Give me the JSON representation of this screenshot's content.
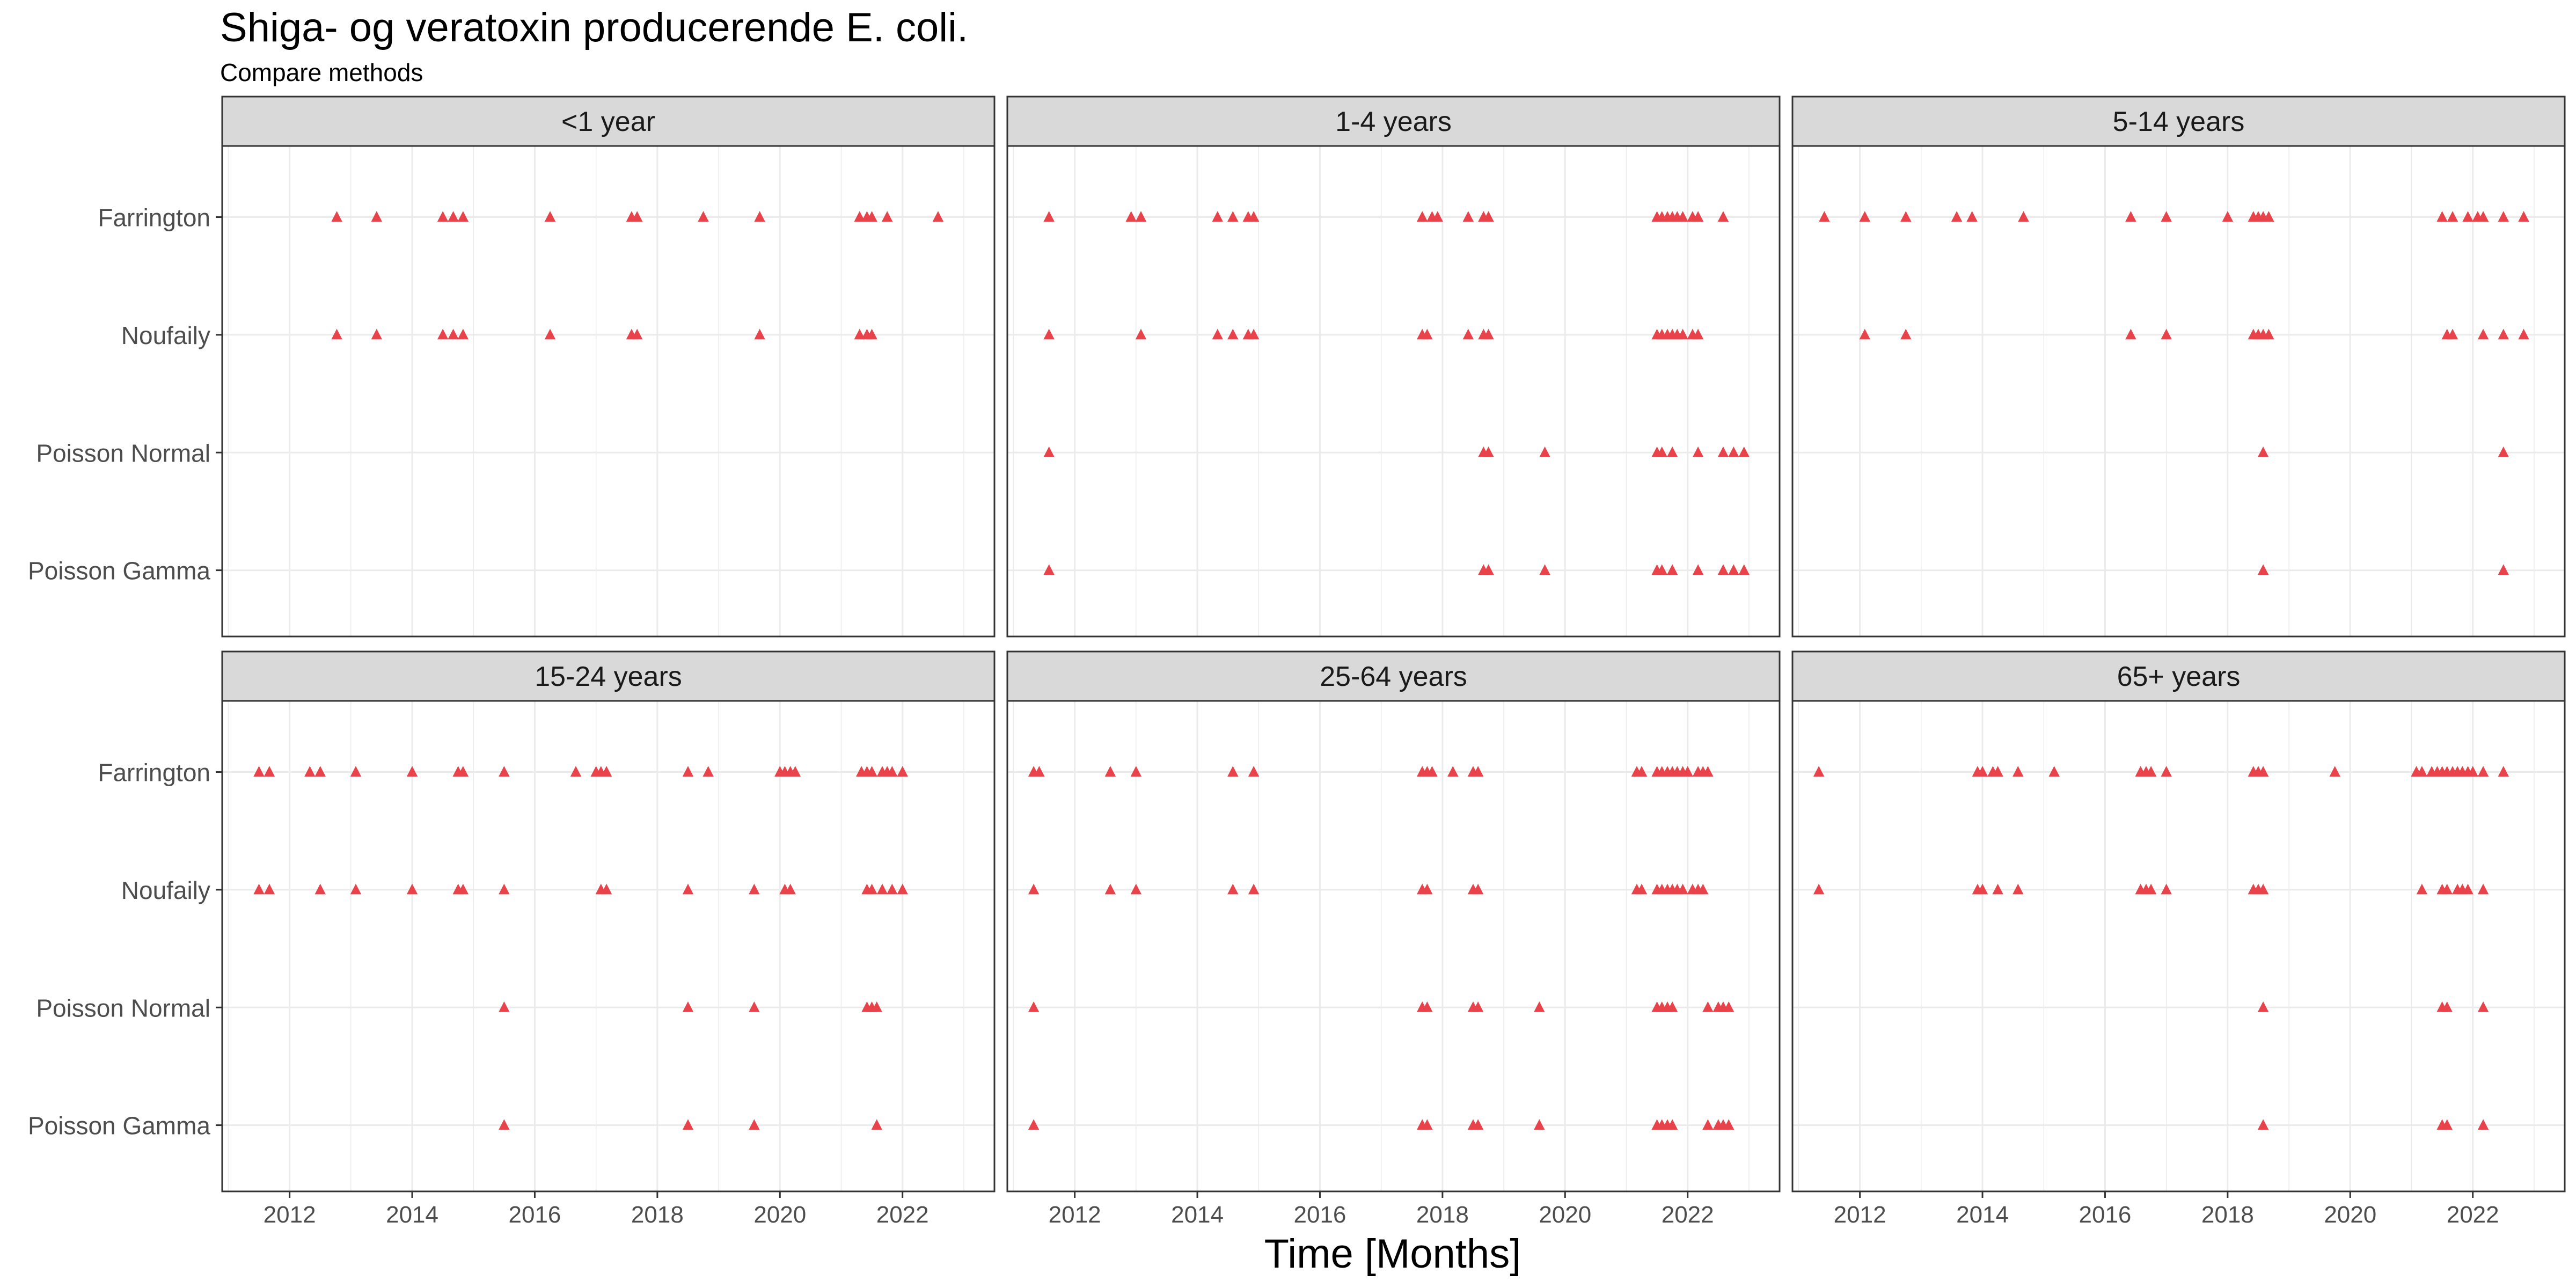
{
  "title": "Shiga- og veratoxin producerende E. coli.",
  "subtitle": "Compare methods",
  "colors": {
    "marker": "#e8434a",
    "strip_bg": "#d9d9d9",
    "grid": "#ebebeb",
    "panel_border": "#333333"
  },
  "chart_data": {
    "type": "scatter",
    "marker": "triangle",
    "xlabel": "Time [Months]",
    "x_ticks": [
      "2012",
      "2014",
      "2016",
      "2018",
      "2020",
      "2022"
    ],
    "xlim": [
      2010.9,
      2023.5
    ],
    "methods": [
      "Farrington",
      "Noufaily",
      "Poisson Normal",
      "Poisson Gamma"
    ],
    "grid": true,
    "panels": [
      {
        "name": "<1 year",
        "series": {
          "Farrington": [
            2012.77,
            2013.42,
            2014.5,
            2014.67,
            2014.83,
            2016.25,
            2017.58,
            2017.67,
            2018.75,
            2019.67,
            2021.3,
            2021.42,
            2021.5,
            2021.75,
            2022.58
          ],
          "Noufaily": [
            2012.77,
            2013.42,
            2014.5,
            2014.67,
            2014.83,
            2016.25,
            2017.58,
            2017.67,
            2019.67,
            2021.3,
            2021.42,
            2021.5
          ],
          "Poisson Normal": [],
          "Poisson Gamma": []
        }
      },
      {
        "name": "1-4 years",
        "series": {
          "Farrington": [
            2011.58,
            2012.92,
            2013.08,
            2014.33,
            2014.58,
            2014.83,
            2014.92,
            2017.67,
            2017.83,
            2017.92,
            2018.42,
            2018.67,
            2018.75,
            2021.5,
            2021.58,
            2021.67,
            2021.75,
            2021.83,
            2021.92,
            2022.08,
            2022.17,
            2022.58
          ],
          "Noufaily": [
            2011.58,
            2013.08,
            2014.33,
            2014.58,
            2014.83,
            2014.92,
            2017.67,
            2017.75,
            2018.42,
            2018.67,
            2018.75,
            2021.5,
            2021.58,
            2021.67,
            2021.75,
            2021.83,
            2021.92,
            2022.08,
            2022.17
          ],
          "Poisson Normal": [
            2011.58,
            2018.67,
            2018.75,
            2019.67,
            2021.5,
            2021.58,
            2021.75,
            2022.17,
            2022.58,
            2022.75,
            2022.92
          ],
          "Poisson Gamma": [
            2011.58,
            2018.67,
            2018.75,
            2019.67,
            2021.5,
            2021.58,
            2021.75,
            2022.17,
            2022.58,
            2022.75,
            2022.92
          ]
        }
      },
      {
        "name": "5-14 years",
        "series": {
          "Farrington": [
            2011.42,
            2012.08,
            2012.75,
            2013.58,
            2013.83,
            2014.67,
            2016.42,
            2017.0,
            2018.0,
            2018.42,
            2018.5,
            2018.58,
            2018.67,
            2021.5,
            2021.67,
            2021.92,
            2022.08,
            2022.17,
            2022.5,
            2022.83
          ],
          "Noufaily": [
            2012.08,
            2012.75,
            2016.42,
            2017.0,
            2018.42,
            2018.5,
            2018.58,
            2018.67,
            2021.58,
            2021.67,
            2022.17,
            2022.5,
            2022.83
          ],
          "Poisson Normal": [
            2018.58,
            2022.5
          ],
          "Poisson Gamma": [
            2018.58,
            2022.5
          ]
        }
      },
      {
        "name": "15-24 years",
        "series": {
          "Farrington": [
            2011.5,
            2011.67,
            2012.33,
            2012.5,
            2013.08,
            2014.0,
            2014.75,
            2014.83,
            2015.5,
            2016.67,
            2017.0,
            2017.08,
            2017.17,
            2018.5,
            2018.83,
            2020.0,
            2020.08,
            2020.17,
            2020.25,
            2021.33,
            2021.42,
            2021.5,
            2021.67,
            2021.75,
            2021.83,
            2022.0
          ],
          "Noufaily": [
            2011.5,
            2011.67,
            2012.5,
            2013.08,
            2014.0,
            2014.75,
            2014.83,
            2015.5,
            2017.08,
            2017.17,
            2018.5,
            2019.58,
            2020.08,
            2020.17,
            2021.42,
            2021.5,
            2021.67,
            2021.83,
            2022.0
          ],
          "Poisson Normal": [
            2015.5,
            2018.5,
            2019.58,
            2021.42,
            2021.5,
            2021.58
          ],
          "Poisson Gamma": [
            2015.5,
            2018.5,
            2019.58,
            2021.58
          ]
        }
      },
      {
        "name": "25-64 years",
        "series": {
          "Farrington": [
            2011.33,
            2011.42,
            2012.58,
            2013.0,
            2014.58,
            2014.92,
            2017.67,
            2017.75,
            2017.83,
            2018.17,
            2018.5,
            2018.58,
            2021.17,
            2021.25,
            2021.5,
            2021.58,
            2021.67,
            2021.75,
            2021.83,
            2021.92,
            2022.0,
            2022.17,
            2022.25,
            2022.33
          ],
          "Noufaily": [
            2011.33,
            2012.58,
            2013.0,
            2014.58,
            2014.92,
            2017.67,
            2017.75,
            2018.5,
            2018.58,
            2021.17,
            2021.25,
            2021.5,
            2021.58,
            2021.67,
            2021.75,
            2021.83,
            2021.92,
            2022.08,
            2022.17,
            2022.25
          ],
          "Poisson Normal": [
            2011.33,
            2017.67,
            2017.75,
            2018.5,
            2018.58,
            2019.58,
            2021.5,
            2021.58,
            2021.67,
            2021.75,
            2022.33,
            2022.5,
            2022.58,
            2022.67
          ],
          "Poisson Gamma": [
            2011.33,
            2017.67,
            2017.75,
            2018.5,
            2018.58,
            2019.58,
            2021.5,
            2021.58,
            2021.67,
            2021.75,
            2022.33,
            2022.5,
            2022.58,
            2022.67
          ]
        }
      },
      {
        "name": "65+ years",
        "series": {
          "Farrington": [
            2011.33,
            2013.92,
            2014.0,
            2014.17,
            2014.25,
            2014.58,
            2015.17,
            2016.58,
            2016.67,
            2016.75,
            2017.0,
            2018.42,
            2018.5,
            2018.58,
            2019.75,
            2021.08,
            2021.17,
            2021.33,
            2021.42,
            2021.5,
            2021.58,
            2021.67,
            2021.75,
            2021.83,
            2021.92,
            2022.0,
            2022.17,
            2022.5
          ],
          "Noufaily": [
            2011.33,
            2013.92,
            2014.0,
            2014.25,
            2014.58,
            2016.58,
            2016.67,
            2016.75,
            2017.0,
            2018.42,
            2018.5,
            2018.58,
            2021.17,
            2021.5,
            2021.58,
            2021.75,
            2021.83,
            2021.92,
            2022.17
          ],
          "Poisson Normal": [
            2018.58,
            2021.5,
            2021.58,
            2022.17
          ],
          "Poisson Gamma": [
            2018.58,
            2021.5,
            2021.58,
            2022.17
          ]
        }
      }
    ]
  }
}
